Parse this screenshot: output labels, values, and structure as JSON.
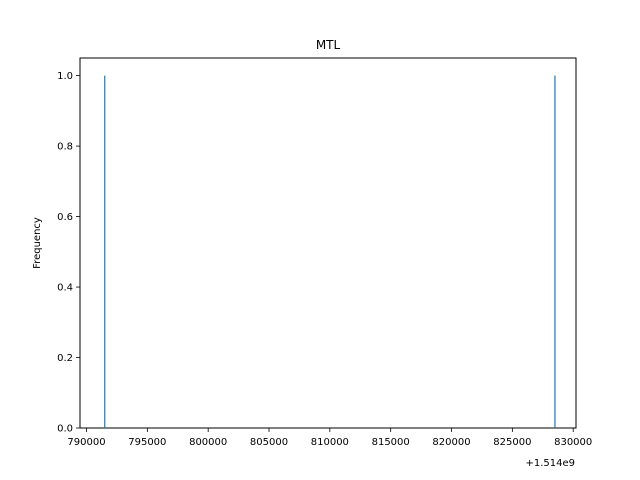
{
  "chart_data": {
    "type": "bar",
    "title": "MTL",
    "xlabel": "",
    "ylabel": "Frequency",
    "x_offset_label": "+1.514e9",
    "x_offset": 1514000000,
    "xlim": [
      790000,
      830000
    ],
    "ylim": [
      0,
      1.05
    ],
    "x_ticks": [
      790000,
      795000,
      800000,
      805000,
      810000,
      815000,
      820000,
      825000,
      830000
    ],
    "x_tick_labels": [
      "790000",
      "795000",
      "800000",
      "805000",
      "810000",
      "815000",
      "820000",
      "825000",
      "830000"
    ],
    "y_ticks": [
      0.0,
      0.2,
      0.4,
      0.6,
      0.8,
      1.0
    ],
    "y_tick_labels": [
      "0.0",
      "0.2",
      "0.4",
      "0.6",
      "0.8",
      "1.0"
    ],
    "grid": false,
    "bar_color": "#1f77b4",
    "bars": [
      {
        "x": 791500,
        "value": 1
      },
      {
        "x": 828500,
        "value": 1
      }
    ]
  }
}
